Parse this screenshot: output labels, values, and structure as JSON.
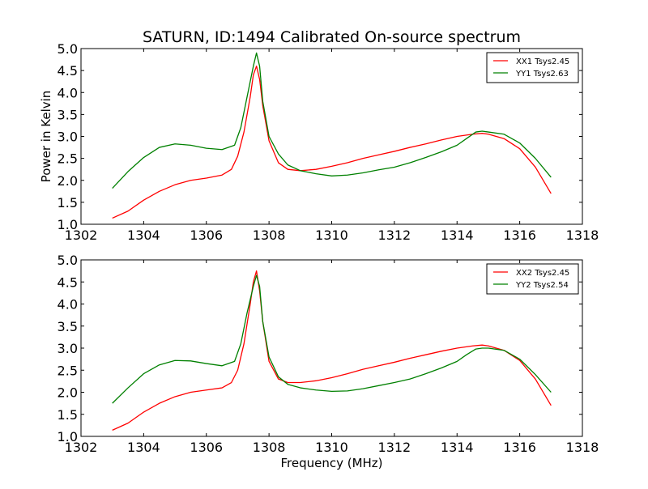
{
  "chart_data": [
    {
      "type": "line",
      "title": "SATURN, ID:1494 Calibrated On-source spectrum",
      "xlabel": "",
      "ylabel": "Power in Kelvin",
      "xlim": [
        1302,
        1318
      ],
      "ylim": [
        1.0,
        5.0
      ],
      "xticks": [
        "1302",
        "1304",
        "1306",
        "1308",
        "1310",
        "1312",
        "1314",
        "1316",
        "1318"
      ],
      "yticks": [
        "1.0",
        "1.5",
        "2.0",
        "2.5",
        "3.0",
        "3.5",
        "4.0",
        "4.5",
        "5.0"
      ],
      "grid": false,
      "legend_position": "top-right",
      "series": [
        {
          "name": "XX1 Tsys2.45",
          "color": "#ff0000",
          "x": [
            1303.0,
            1303.5,
            1304.0,
            1304.5,
            1305.0,
            1305.5,
            1306.0,
            1306.5,
            1306.8,
            1307.0,
            1307.2,
            1307.4,
            1307.5,
            1307.6,
            1307.7,
            1307.8,
            1308.0,
            1308.3,
            1308.6,
            1309.0,
            1309.5,
            1310.0,
            1310.5,
            1311.0,
            1311.5,
            1312.0,
            1312.5,
            1313.0,
            1313.5,
            1314.0,
            1314.5,
            1314.8,
            1315.0,
            1315.5,
            1316.0,
            1316.5,
            1317.0
          ],
          "values": [
            1.14,
            1.3,
            1.55,
            1.75,
            1.9,
            2.0,
            2.05,
            2.12,
            2.25,
            2.55,
            3.1,
            3.9,
            4.4,
            4.6,
            4.3,
            3.7,
            2.9,
            2.4,
            2.25,
            2.22,
            2.25,
            2.32,
            2.4,
            2.5,
            2.58,
            2.66,
            2.75,
            2.83,
            2.92,
            3.0,
            3.05,
            3.07,
            3.05,
            2.95,
            2.72,
            2.3,
            1.7
          ]
        },
        {
          "name": "YY1 Tsys2.63",
          "color": "#008000",
          "x": [
            1303.0,
            1303.5,
            1304.0,
            1304.5,
            1305.0,
            1305.5,
            1306.0,
            1306.5,
            1306.9,
            1307.1,
            1307.3,
            1307.5,
            1307.6,
            1307.7,
            1307.8,
            1308.0,
            1308.3,
            1308.6,
            1309.0,
            1309.5,
            1310.0,
            1310.5,
            1311.0,
            1311.5,
            1312.0,
            1312.5,
            1313.0,
            1313.5,
            1314.0,
            1314.3,
            1314.6,
            1314.8,
            1315.0,
            1315.5,
            1316.0,
            1316.5,
            1317.0
          ],
          "values": [
            1.82,
            2.2,
            2.52,
            2.75,
            2.83,
            2.8,
            2.73,
            2.7,
            2.8,
            3.2,
            3.9,
            4.6,
            4.9,
            4.6,
            3.8,
            3.0,
            2.6,
            2.35,
            2.22,
            2.15,
            2.1,
            2.12,
            2.17,
            2.24,
            2.3,
            2.4,
            2.52,
            2.65,
            2.8,
            2.95,
            3.1,
            3.12,
            3.1,
            3.05,
            2.85,
            2.5,
            2.07
          ]
        }
      ]
    },
    {
      "type": "line",
      "title": "",
      "xlabel": "Frequency (MHz)",
      "ylabel": "",
      "xlim": [
        1302,
        1318
      ],
      "ylim": [
        1.0,
        5.0
      ],
      "xticks": [
        "1302",
        "1304",
        "1306",
        "1308",
        "1310",
        "1312",
        "1314",
        "1316",
        "1318"
      ],
      "yticks": [
        "1.0",
        "1.5",
        "2.0",
        "2.5",
        "3.0",
        "3.5",
        "4.0",
        "4.5",
        "5.0"
      ],
      "grid": false,
      "legend_position": "top-right",
      "series": [
        {
          "name": "XX2 Tsys2.45",
          "color": "#ff0000",
          "x": [
            1303.0,
            1303.5,
            1304.0,
            1304.5,
            1305.0,
            1305.5,
            1306.0,
            1306.5,
            1306.8,
            1307.0,
            1307.2,
            1307.4,
            1307.5,
            1307.6,
            1307.7,
            1307.8,
            1308.0,
            1308.3,
            1308.6,
            1309.0,
            1309.5,
            1310.0,
            1310.5,
            1311.0,
            1311.5,
            1312.0,
            1312.5,
            1313.0,
            1313.5,
            1314.0,
            1314.5,
            1314.8,
            1315.0,
            1315.5,
            1316.0,
            1316.5,
            1317.0
          ],
          "values": [
            1.14,
            1.3,
            1.55,
            1.75,
            1.9,
            2.0,
            2.05,
            2.1,
            2.22,
            2.5,
            3.1,
            4.0,
            4.5,
            4.75,
            4.3,
            3.6,
            2.7,
            2.3,
            2.22,
            2.22,
            2.26,
            2.33,
            2.42,
            2.52,
            2.6,
            2.68,
            2.77,
            2.85,
            2.93,
            3.0,
            3.05,
            3.07,
            3.05,
            2.95,
            2.72,
            2.3,
            1.7
          ]
        },
        {
          "name": "YY2 Tsys2.54",
          "color": "#008000",
          "x": [
            1303.0,
            1303.5,
            1304.0,
            1304.5,
            1305.0,
            1305.5,
            1306.0,
            1306.5,
            1306.9,
            1307.1,
            1307.3,
            1307.5,
            1307.6,
            1307.7,
            1307.8,
            1308.0,
            1308.3,
            1308.6,
            1309.0,
            1309.5,
            1310.0,
            1310.5,
            1311.0,
            1311.5,
            1312.0,
            1312.5,
            1313.0,
            1313.5,
            1314.0,
            1314.3,
            1314.6,
            1314.8,
            1315.0,
            1315.5,
            1316.0,
            1316.5,
            1317.0
          ],
          "values": [
            1.75,
            2.1,
            2.42,
            2.62,
            2.72,
            2.71,
            2.65,
            2.6,
            2.7,
            3.1,
            3.8,
            4.4,
            4.65,
            4.4,
            3.6,
            2.8,
            2.35,
            2.18,
            2.1,
            2.05,
            2.02,
            2.03,
            2.08,
            2.15,
            2.22,
            2.3,
            2.42,
            2.55,
            2.7,
            2.85,
            2.98,
            3.0,
            3.0,
            2.95,
            2.75,
            2.4,
            2.0
          ]
        }
      ]
    }
  ]
}
